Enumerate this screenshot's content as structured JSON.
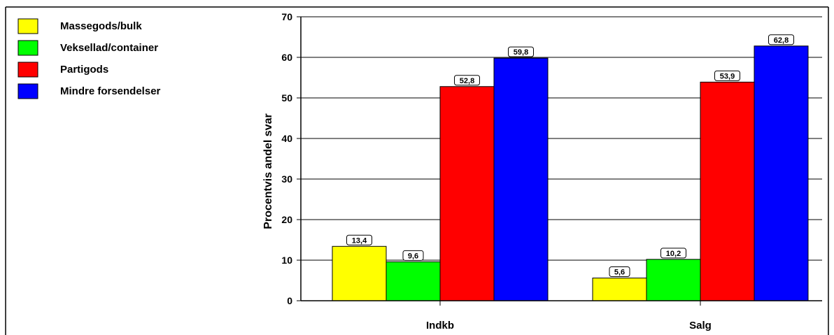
{
  "chart_data": {
    "type": "bar",
    "categories": [
      "Indkb",
      "Salg"
    ],
    "series": [
      {
        "name": "Massegods/bulk",
        "values": [
          13.4,
          5.6
        ],
        "labels": [
          "13,4",
          "5,6"
        ],
        "color": "#ffff00"
      },
      {
        "name": "Veksellad/container",
        "values": [
          9.6,
          10.2
        ],
        "labels": [
          "9,6",
          "10,2"
        ],
        "color": "#00ff00"
      },
      {
        "name": "Partigods",
        "values": [
          52.8,
          53.9
        ],
        "labels": [
          "52,8",
          "53,9"
        ],
        "color": "#ff0000"
      },
      {
        "name": "Mindre forsendelser",
        "values": [
          59.8,
          62.8
        ],
        "labels": [
          "59,8",
          "62,8"
        ],
        "color": "#0000ff"
      }
    ],
    "title": "",
    "xlabel": "",
    "ylabel": "Procentvis andel svar",
    "ylim": [
      0,
      70
    ],
    "yticks": [
      0,
      10,
      20,
      30,
      40,
      50,
      60,
      70
    ],
    "grid": true,
    "legend_position": "top-left"
  }
}
